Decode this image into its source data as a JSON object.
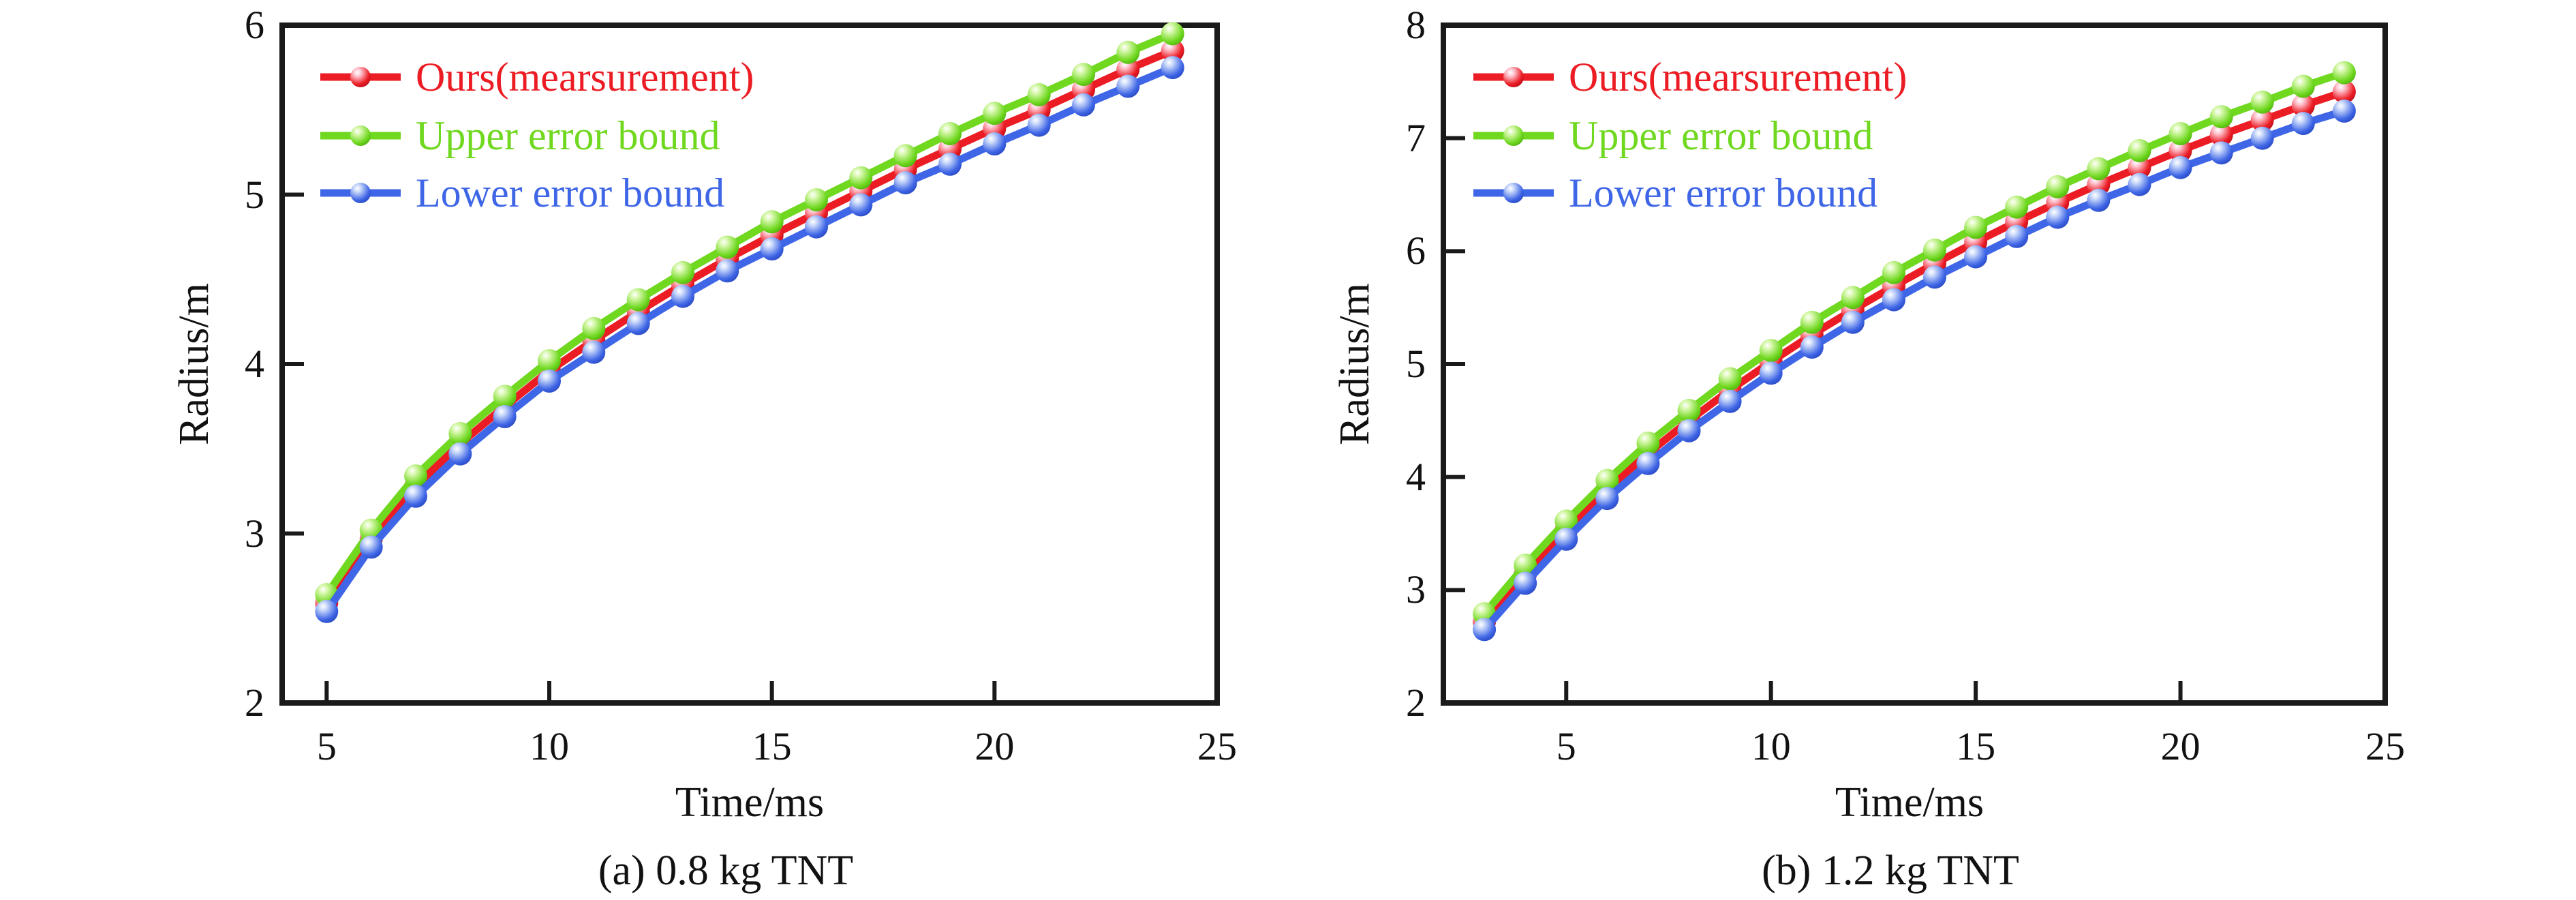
{
  "figure": {
    "background": "#ffffff",
    "text_color": "#111111",
    "axis_color": "#1a1a1a"
  },
  "chart_data": [
    {
      "type": "line",
      "caption": "(a) 0.8 kg TNT",
      "xlabel": "Time/ms",
      "ylabel": "Radius/m",
      "xlim": [
        4,
        25
      ],
      "ylim": [
        2,
        6
      ],
      "xticks": [
        5,
        10,
        15,
        20,
        25
      ],
      "yticks": [
        2,
        3,
        4,
        5,
        6
      ],
      "grid": false,
      "legend_position": "upper-left",
      "x": [
        5,
        6,
        7,
        8,
        9,
        10,
        11,
        12,
        13,
        14,
        15,
        16,
        17,
        18,
        19,
        20,
        21,
        22,
        23,
        24
      ],
      "series": [
        {
          "name": "Ours(mearsurement)",
          "color": "#EC1C24",
          "color_light": "#FFC9D4",
          "color_dark": "#B50E1B",
          "values": [
            2.59,
            2.97,
            3.28,
            3.53,
            3.75,
            3.96,
            4.14,
            4.31,
            4.47,
            4.62,
            4.76,
            4.89,
            5.02,
            5.15,
            5.27,
            5.39,
            5.5,
            5.62,
            5.74,
            5.85
          ]
        },
        {
          "name": "Upper error bound",
          "color": "#6FD81F",
          "color_light": "#D8F8AE",
          "color_dark": "#4CAF0C",
          "values": [
            2.64,
            3.02,
            3.34,
            3.59,
            3.81,
            4.02,
            4.21,
            4.38,
            4.54,
            4.69,
            4.84,
            4.97,
            5.1,
            5.23,
            5.36,
            5.48,
            5.59,
            5.71,
            5.84,
            5.95
          ]
        },
        {
          "name": "Lower error bound",
          "color": "#3F66E6",
          "color_light": "#C9D8FA",
          "color_dark": "#2745BE",
          "values": [
            2.54,
            2.92,
            3.22,
            3.47,
            3.69,
            3.9,
            4.07,
            4.24,
            4.4,
            4.55,
            4.68,
            4.81,
            4.94,
            5.07,
            5.18,
            5.3,
            5.41,
            5.53,
            5.64,
            5.75
          ]
        }
      ]
    },
    {
      "type": "line",
      "caption": "(b) 1.2 kg TNT",
      "xlabel": "Time/ms",
      "ylabel": "Radius/m",
      "xlim": [
        2,
        25
      ],
      "ylim": [
        2,
        8
      ],
      "xticks": [
        5,
        10,
        15,
        20,
        25
      ],
      "yticks": [
        2,
        3,
        4,
        5,
        6,
        7,
        8
      ],
      "grid": false,
      "legend_position": "upper-left",
      "x": [
        3,
        4,
        5,
        6,
        7,
        8,
        9,
        10,
        11,
        12,
        13,
        14,
        15,
        16,
        17,
        18,
        19,
        20,
        21,
        22,
        23,
        24
      ],
      "series": [
        {
          "name": "Ours(mearsurement)",
          "color": "#EC1C24",
          "color_light": "#FFC9D4",
          "color_dark": "#B50E1B",
          "values": [
            2.72,
            3.14,
            3.53,
            3.89,
            4.21,
            4.5,
            4.77,
            5.02,
            5.26,
            5.48,
            5.69,
            5.89,
            6.08,
            6.26,
            6.43,
            6.59,
            6.74,
            6.89,
            7.03,
            7.16,
            7.29,
            7.41
          ]
        },
        {
          "name": "Upper error bound",
          "color": "#6FD81F",
          "color_light": "#D8F8AE",
          "color_dark": "#4CAF0C",
          "values": [
            2.79,
            3.22,
            3.61,
            3.97,
            4.3,
            4.59,
            4.87,
            5.12,
            5.37,
            5.59,
            5.81,
            6.01,
            6.21,
            6.39,
            6.57,
            6.73,
            6.89,
            7.04,
            7.19,
            7.32,
            7.46,
            7.58
          ]
        },
        {
          "name": "Lower error bound",
          "color": "#3F66E6",
          "color_light": "#C9D8FA",
          "color_dark": "#2745BE",
          "values": [
            2.65,
            3.06,
            3.45,
            3.81,
            4.12,
            4.41,
            4.67,
            4.92,
            5.15,
            5.37,
            5.57,
            5.77,
            5.95,
            6.13,
            6.3,
            6.45,
            6.59,
            6.74,
            6.87,
            7.0,
            7.13,
            7.24
          ]
        }
      ]
    }
  ]
}
